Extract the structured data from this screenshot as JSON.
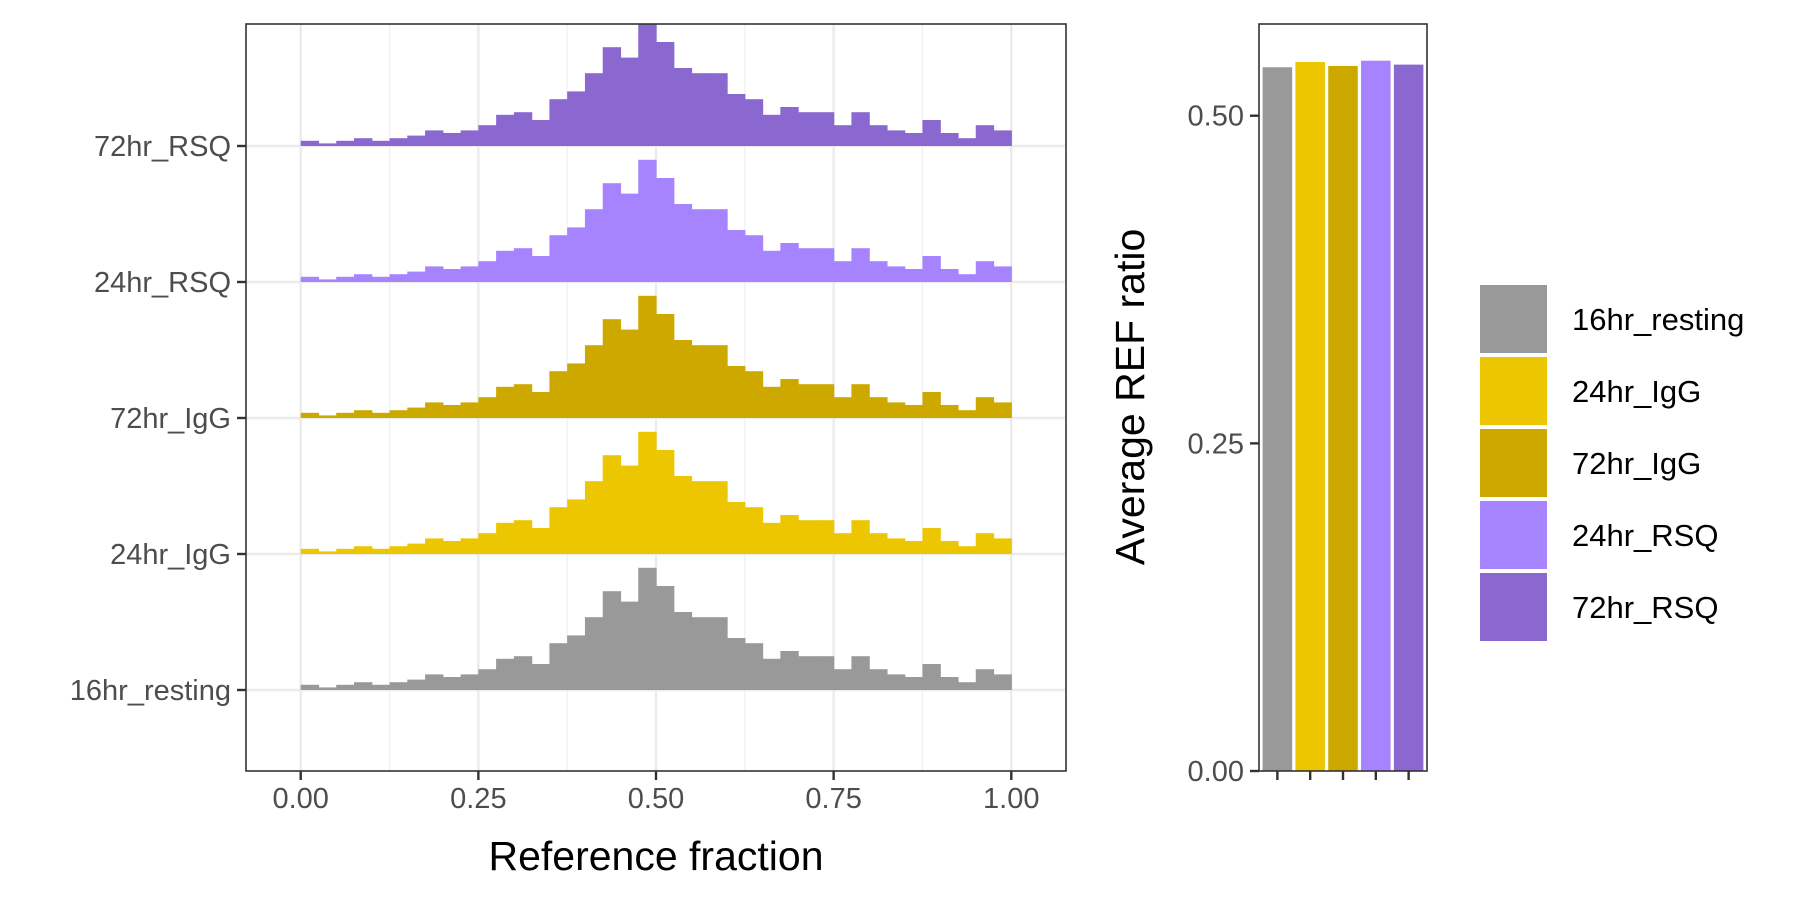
{
  "chart_data": [
    {
      "type": "ridgeline-histogram",
      "title": "",
      "xlabel": "Reference fraction",
      "ylabel": "",
      "xlim": [
        -0.077,
        1.077
      ],
      "x_ticks": [
        "0.00",
        "0.25",
        "0.50",
        "0.75",
        "1.00"
      ],
      "x_tick_values": [
        0,
        0.25,
        0.5,
        0.75,
        1.0
      ],
      "grid": true,
      "bins": 40,
      "bin_range": [
        0,
        1
      ],
      "groups": [
        "16hr_resting",
        "24hr_IgG",
        "72hr_IgG",
        "24hr_RSQ",
        "72hr_RSQ"
      ],
      "series": [
        {
          "name": "16hr_resting",
          "color": "#999999",
          "values": [
            0.02,
            0.01,
            0.02,
            0.03,
            0.02,
            0.03,
            0.04,
            0.06,
            0.05,
            0.06,
            0.08,
            0.12,
            0.13,
            0.1,
            0.18,
            0.21,
            0.28,
            0.38,
            0.34,
            0.47,
            0.4,
            0.3,
            0.28,
            0.28,
            0.2,
            0.18,
            0.12,
            0.15,
            0.13,
            0.13,
            0.08,
            0.13,
            0.08,
            0.06,
            0.05,
            0.1,
            0.05,
            0.03,
            0.08,
            0.06
          ]
        },
        {
          "name": "24hr_IgG",
          "color": "#EDC602",
          "values": [
            0.02,
            0.01,
            0.02,
            0.03,
            0.02,
            0.03,
            0.04,
            0.06,
            0.05,
            0.06,
            0.08,
            0.12,
            0.13,
            0.1,
            0.18,
            0.21,
            0.28,
            0.38,
            0.34,
            0.47,
            0.4,
            0.3,
            0.28,
            0.28,
            0.2,
            0.18,
            0.12,
            0.15,
            0.13,
            0.13,
            0.08,
            0.13,
            0.08,
            0.06,
            0.05,
            0.1,
            0.05,
            0.03,
            0.08,
            0.06
          ]
        },
        {
          "name": "72hr_IgG",
          "color": "#CDA900",
          "values": [
            0.02,
            0.01,
            0.02,
            0.03,
            0.02,
            0.03,
            0.04,
            0.06,
            0.05,
            0.06,
            0.08,
            0.12,
            0.13,
            0.1,
            0.18,
            0.21,
            0.28,
            0.38,
            0.34,
            0.47,
            0.4,
            0.3,
            0.28,
            0.28,
            0.2,
            0.18,
            0.12,
            0.15,
            0.13,
            0.13,
            0.08,
            0.13,
            0.08,
            0.06,
            0.05,
            0.1,
            0.05,
            0.03,
            0.08,
            0.06
          ]
        },
        {
          "name": "24hr_RSQ",
          "color": "#A784FF",
          "values": [
            0.02,
            0.01,
            0.02,
            0.03,
            0.02,
            0.03,
            0.04,
            0.06,
            0.05,
            0.06,
            0.08,
            0.12,
            0.13,
            0.1,
            0.18,
            0.21,
            0.28,
            0.38,
            0.34,
            0.47,
            0.4,
            0.3,
            0.28,
            0.28,
            0.2,
            0.18,
            0.12,
            0.15,
            0.13,
            0.13,
            0.08,
            0.13,
            0.08,
            0.06,
            0.05,
            0.1,
            0.05,
            0.03,
            0.08,
            0.06
          ]
        },
        {
          "name": "72hr_RSQ",
          "color": "#8A68D0",
          "values": [
            0.02,
            0.01,
            0.02,
            0.03,
            0.02,
            0.03,
            0.04,
            0.06,
            0.05,
            0.06,
            0.08,
            0.12,
            0.13,
            0.1,
            0.18,
            0.21,
            0.28,
            0.38,
            0.34,
            0.47,
            0.4,
            0.3,
            0.28,
            0.28,
            0.2,
            0.18,
            0.12,
            0.15,
            0.13,
            0.13,
            0.08,
            0.13,
            0.08,
            0.06,
            0.05,
            0.1,
            0.05,
            0.03,
            0.08,
            0.06
          ]
        }
      ]
    },
    {
      "type": "bar",
      "title": "",
      "xlabel": "",
      "ylabel": "Average REF ratio",
      "ylim": [
        0,
        0.57
      ],
      "y_ticks": [
        "0.00",
        "0.25",
        "0.50"
      ],
      "y_tick_values": [
        0,
        0.25,
        0.5
      ],
      "grid": false,
      "categories": [
        "16hr_resting",
        "24hr_IgG",
        "72hr_IgG",
        "24hr_RSQ",
        "72hr_RSQ"
      ],
      "values": [
        0.537,
        0.541,
        0.538,
        0.542,
        0.539
      ],
      "colors": [
        "#999999",
        "#EDC602",
        "#CDA900",
        "#A784FF",
        "#8A68D0"
      ],
      "legend": {
        "placement": "right",
        "entries": [
          {
            "label": "16hr_resting",
            "color": "#999999"
          },
          {
            "label": "24hr_IgG",
            "color": "#EDC602"
          },
          {
            "label": "72hr_IgG",
            "color": "#CDA900"
          },
          {
            "label": "24hr_RSQ",
            "color": "#A784FF"
          },
          {
            "label": "72hr_RSQ",
            "color": "#8A68D0"
          }
        ]
      }
    }
  ]
}
